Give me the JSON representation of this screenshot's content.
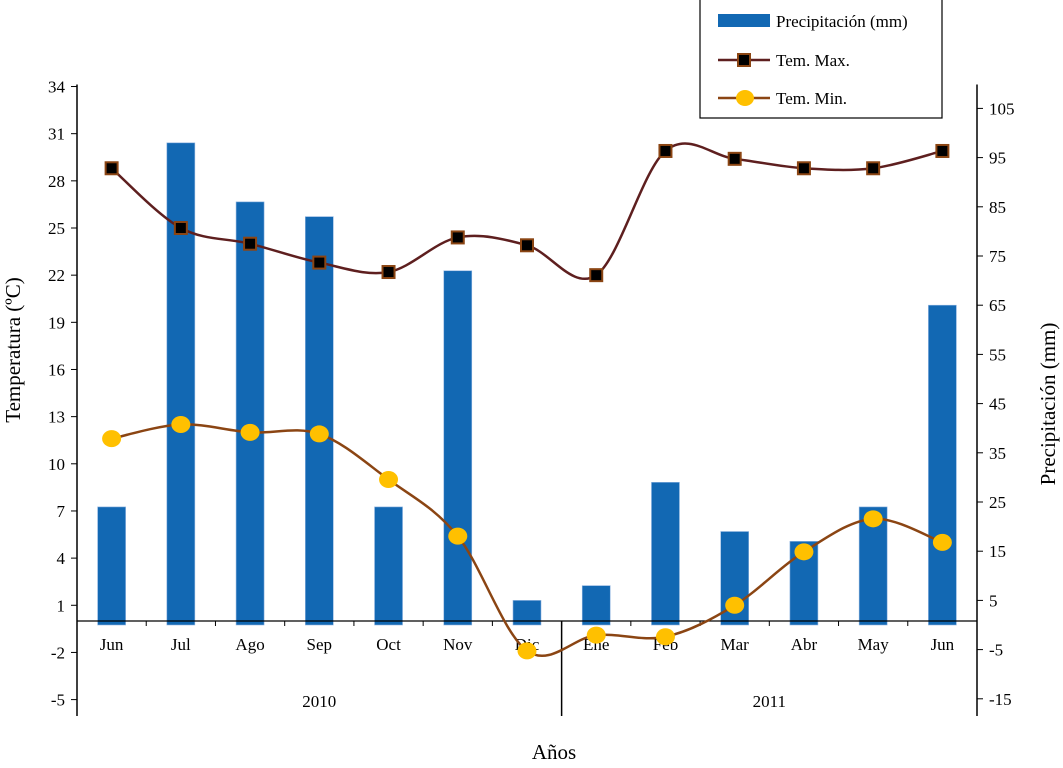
{
  "chart_data": {
    "type": "bar+line",
    "title": "",
    "xlabel": "Años",
    "ylabel_left": "Temperatura (ºC)",
    "ylabel_right": "Precipitación (mm)",
    "categories": [
      "Jun",
      "Jul",
      "Ago",
      "Sep",
      "Oct",
      "Nov",
      "Dic",
      "Ene",
      "Feb",
      "Mar",
      "Abr",
      "May",
      "Jun"
    ],
    "year_groups": [
      {
        "label": "2010",
        "months": 7
      },
      {
        "label": "2011",
        "months": 6
      }
    ],
    "ylim_left": [
      -5,
      34
    ],
    "yticks_left": [
      -5,
      -2,
      1,
      4,
      7,
      10,
      13,
      16,
      19,
      22,
      25,
      28,
      31,
      34
    ],
    "ylim_right": [
      -15,
      110
    ],
    "yticks_right": [
      -15,
      -5,
      5,
      15,
      25,
      35,
      45,
      55,
      65,
      75,
      85,
      95,
      105
    ],
    "grid": false,
    "legend_placement": "top-right",
    "series": [
      {
        "name": "Precipitación (mm)",
        "kind": "bar",
        "axis": "right",
        "color": "#1268b3",
        "values": [
          24,
          98,
          86,
          83,
          24,
          72,
          5,
          8,
          29,
          19,
          17,
          24,
          65
        ]
      },
      {
        "name": "Tem. Max.",
        "kind": "line",
        "axis": "left",
        "color": "#5e1f1f",
        "marker": "square",
        "marker_fill": "#000000",
        "marker_edge": "#8b4513",
        "values": [
          28.8,
          25.0,
          24.0,
          22.8,
          22.2,
          24.4,
          23.9,
          22.0,
          29.9,
          29.4,
          28.8,
          28.8,
          29.9
        ]
      },
      {
        "name": "Tem. Min.",
        "kind": "line",
        "axis": "left",
        "color": "#8b4513",
        "marker": "circle",
        "marker_fill": "#ffc000",
        "values": [
          11.6,
          12.5,
          12.0,
          11.9,
          9.0,
          5.4,
          -1.9,
          -0.9,
          -1.0,
          1.0,
          4.4,
          6.5,
          5.0
        ]
      }
    ]
  }
}
